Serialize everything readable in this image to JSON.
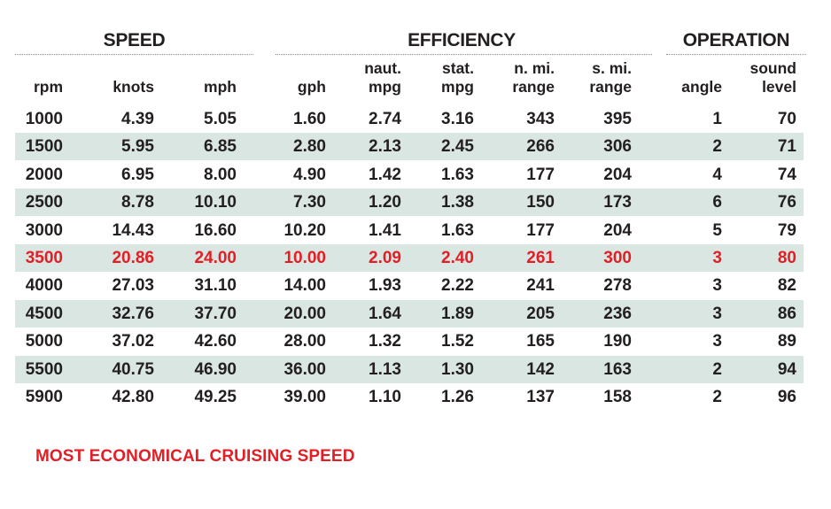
{
  "sections": {
    "speed": "SPEED",
    "efficiency": "EFFICIENCY",
    "operation": "OPERATION"
  },
  "columns": [
    "rpm",
    "knots",
    "mph",
    "gph",
    "naut.\nmpg",
    "stat.\nmpg",
    "n. mi.\nrange",
    "s. mi.\nrange",
    "angle",
    "sound\nlevel"
  ],
  "rows": [
    [
      "1000",
      "4.39",
      "5.05",
      "1.60",
      "2.74",
      "3.16",
      "343",
      "395",
      "1",
      "70"
    ],
    [
      "1500",
      "5.95",
      "6.85",
      "2.80",
      "2.13",
      "2.45",
      "266",
      "306",
      "2",
      "71"
    ],
    [
      "2000",
      "6.95",
      "8.00",
      "4.90",
      "1.42",
      "1.63",
      "177",
      "204",
      "4",
      "74"
    ],
    [
      "2500",
      "8.78",
      "10.10",
      "7.30",
      "1.20",
      "1.38",
      "150",
      "173",
      "6",
      "76"
    ],
    [
      "3000",
      "14.43",
      "16.60",
      "10.20",
      "1.41",
      "1.63",
      "177",
      "204",
      "5",
      "79"
    ],
    [
      "3500",
      "20.86",
      "24.00",
      "10.00",
      "2.09",
      "2.40",
      "261",
      "300",
      "3",
      "80"
    ],
    [
      "4000",
      "27.03",
      "31.10",
      "14.00",
      "1.93",
      "2.22",
      "241",
      "278",
      "3",
      "82"
    ],
    [
      "4500",
      "32.76",
      "37.70",
      "20.00",
      "1.64",
      "1.89",
      "205",
      "236",
      "3",
      "86"
    ],
    [
      "5000",
      "37.02",
      "42.60",
      "28.00",
      "1.32",
      "1.52",
      "165",
      "190",
      "3",
      "89"
    ],
    [
      "5500",
      "40.75",
      "46.90",
      "36.00",
      "1.13",
      "1.30",
      "142",
      "163",
      "2",
      "94"
    ],
    [
      "5900",
      "42.80",
      "49.25",
      "39.00",
      "1.10",
      "1.26",
      "137",
      "158",
      "2",
      "96"
    ]
  ],
  "highlight_row_index": 5,
  "footnote": "MOST ECONOMICAL CRUISING SPEED",
  "colors": {
    "text": "#231f20",
    "highlight": "#e21e26",
    "stripe": "#d9e6e1"
  }
}
